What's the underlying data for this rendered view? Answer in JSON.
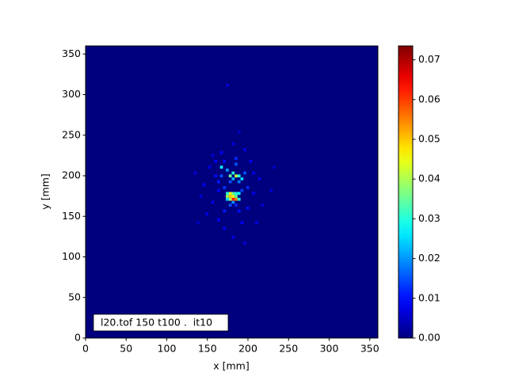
{
  "chart_data": {
    "type": "heatmap",
    "xlabel": "x [mm]",
    "ylabel": "y [mm]",
    "annotation": "l20.tof 150 t100 .  it10",
    "xlim": [
      0,
      360
    ],
    "ylim": [
      0,
      360
    ],
    "xticks": [
      0,
      50,
      100,
      150,
      200,
      250,
      300,
      350
    ],
    "yticks": [
      0,
      50,
      100,
      150,
      200,
      250,
      300,
      350
    ],
    "bin_size": 3.6,
    "colormap": "jet",
    "clim": [
      0,
      0.0735
    ],
    "cticks": [
      {
        "value": 0,
        "label": "0.00"
      },
      {
        "value": 0.01,
        "label": "0.01"
      },
      {
        "value": 0.02,
        "label": "0.02"
      },
      {
        "value": 0.03,
        "label": "0.03"
      },
      {
        "value": 0.04,
        "label": "0.04"
      },
      {
        "value": 0.05,
        "label": "0.05"
      },
      {
        "value": 0.06,
        "label": "0.06"
      },
      {
        "value": 0.07,
        "label": "0.07"
      }
    ],
    "cells": [
      [
        172.8,
        176.4,
        0.03
      ],
      [
        176.4,
        176.4,
        0.045
      ],
      [
        180,
        176.4,
        0.035
      ],
      [
        183.6,
        176.4,
        0.03
      ],
      [
        187.2,
        176.4,
        0.028
      ],
      [
        172.8,
        172.8,
        0.04
      ],
      [
        176.4,
        172.8,
        0.05
      ],
      [
        180,
        172.8,
        0.045
      ],
      [
        183.6,
        172.8,
        0.035
      ],
      [
        176.4,
        169.2,
        0.04
      ],
      [
        180,
        169.2,
        0.062
      ],
      [
        183.6,
        169.2,
        0.055
      ],
      [
        187.2,
        169.2,
        0.03
      ],
      [
        172.8,
        169.2,
        0.025
      ],
      [
        180,
        165.6,
        0.02
      ],
      [
        176.4,
        162,
        0.015
      ],
      [
        183.6,
        162,
        0.012
      ],
      [
        165.6,
        208.8,
        0.028
      ],
      [
        172.8,
        205.2,
        0.02
      ],
      [
        180,
        201.6,
        0.03
      ],
      [
        176.4,
        198,
        0.035
      ],
      [
        183.6,
        198,
        0.042
      ],
      [
        187.2,
        198,
        0.03
      ],
      [
        180,
        194.4,
        0.022
      ],
      [
        190.8,
        194.4,
        0.025
      ],
      [
        187.2,
        190.8,
        0.018
      ],
      [
        183.6,
        212.4,
        0.015
      ],
      [
        194.4,
        201.6,
        0.015
      ],
      [
        176.4,
        190.8,
        0.015
      ],
      [
        165.6,
        198,
        0.015
      ],
      [
        190.8,
        180,
        0.014
      ],
      [
        169.2,
        183.6,
        0.013
      ],
      [
        144,
        187.2,
        0.008
      ],
      [
        151.2,
        208.8,
        0.007
      ],
      [
        158.4,
        198,
        0.01
      ],
      [
        162,
        180,
        0.009
      ],
      [
        154.8,
        165.6,
        0.008
      ],
      [
        140.4,
        172.8,
        0.006
      ],
      [
        147.6,
        151.2,
        0.007
      ],
      [
        162,
        144,
        0.009
      ],
      [
        169.2,
        133.2,
        0.008
      ],
      [
        180,
        122.4,
        0.007
      ],
      [
        190.8,
        140.4,
        0.009
      ],
      [
        198,
        158.4,
        0.01
      ],
      [
        205.2,
        176.4,
        0.008
      ],
      [
        212.4,
        194.4,
        0.007
      ],
      [
        201.6,
        216,
        0.009
      ],
      [
        194.4,
        230.4,
        0.008
      ],
      [
        180,
        237.6,
        0.007
      ],
      [
        165.6,
        226.8,
        0.009
      ],
      [
        154.8,
        223.2,
        0.006
      ],
      [
        216,
        162,
        0.006
      ],
      [
        226.8,
        180,
        0.006
      ],
      [
        133.2,
        201.6,
        0.006
      ],
      [
        187.2,
        252,
        0.005
      ],
      [
        172.8,
        309.6,
        0.006
      ],
      [
        194.4,
        115.2,
        0.006
      ],
      [
        208.8,
        140.4,
        0.007
      ],
      [
        169.2,
        154.8,
        0.011
      ],
      [
        187.2,
        154.8,
        0.01
      ],
      [
        198,
        183.6,
        0.012
      ],
      [
        162,
        190.8,
        0.011
      ],
      [
        205.2,
        201.6,
        0.008
      ],
      [
        183.6,
        219.6,
        0.012
      ],
      [
        169.2,
        216,
        0.01
      ],
      [
        158.4,
        216,
        0.009
      ],
      [
        230.4,
        208.8,
        0.005
      ],
      [
        136.8,
        140.4,
        0.005
      ]
    ]
  }
}
